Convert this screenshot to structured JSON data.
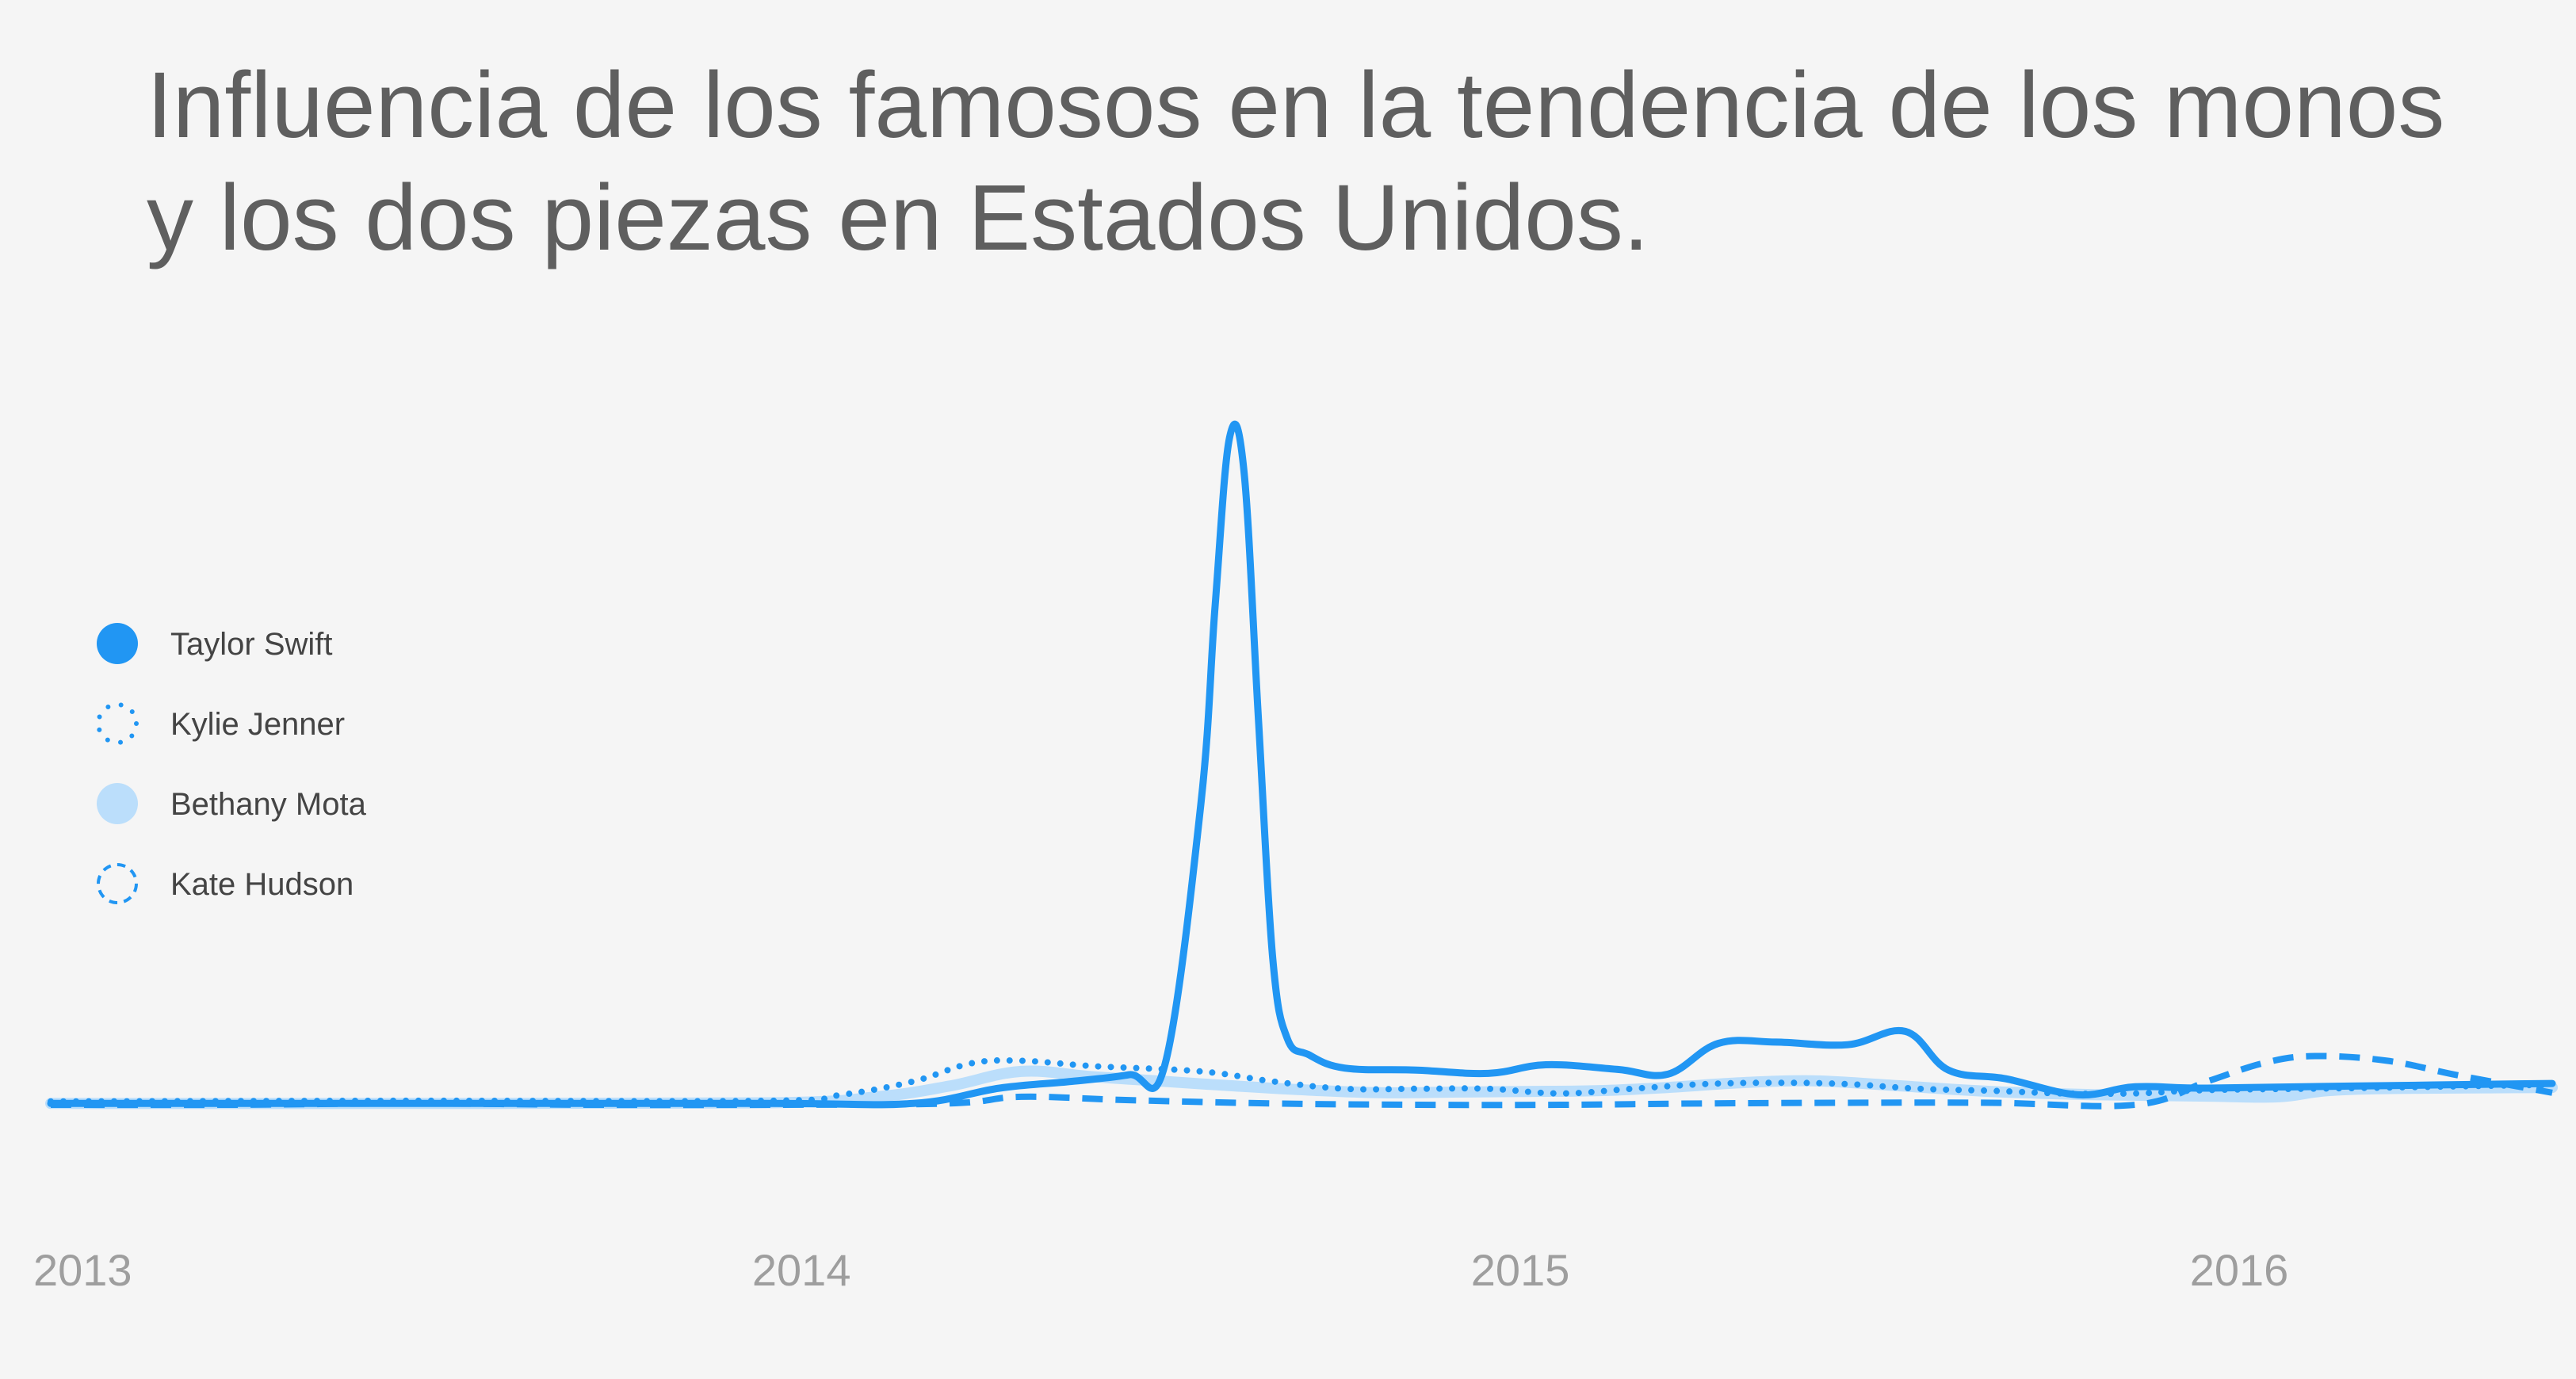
{
  "chart_data": {
    "type": "line",
    "title": "Influencia de los famosos en la tendencia de los monos y los dos piezas en Estados Unidos.",
    "xlabel": "",
    "ylabel": "",
    "x_ticks": [
      "2013",
      "2014",
      "2015",
      "2016"
    ],
    "x_range": [
      2013.0,
      2016.48
    ],
    "ylim": [
      0,
      100
    ],
    "grid": false,
    "legend_position": "left",
    "colors": {
      "primary": "#2196f3",
      "light": "#bbdefb",
      "title": "#5f5f5f",
      "axis_text": "#9e9e9e"
    },
    "series": [
      {
        "name": "Taylor Swift",
        "style": "solid",
        "x": [
          2013.0,
          2013.5,
          2014.0,
          2014.2,
          2014.32,
          2014.42,
          2014.5,
          2014.55,
          2014.6,
          2014.62,
          2014.64,
          2014.66,
          2014.68,
          2014.7,
          2014.72,
          2014.75,
          2014.8,
          2014.9,
          2015.0,
          2015.08,
          2015.18,
          2015.25,
          2015.32,
          2015.4,
          2015.5,
          2015.58,
          2015.64,
          2015.72,
          2015.82,
          2015.9,
          2016.0,
          2016.2,
          2016.48
        ],
        "y": [
          0.2,
          0.2,
          0.2,
          0.2,
          2.5,
          3.5,
          4.5,
          6,
          45,
          75,
          100,
          95,
          58,
          22,
          10,
          7.5,
          5.5,
          5.2,
          4.7,
          6,
          5.3,
          4.6,
          9.2,
          9.4,
          9.0,
          11,
          5.2,
          3.9,
          1.5,
          2.7,
          2.5,
          2.8,
          3.2
        ]
      },
      {
        "name": "Kylie Jenner",
        "style": "dotted",
        "x": [
          2013.0,
          2013.5,
          2014.0,
          2014.1,
          2014.2,
          2014.28,
          2014.35,
          2014.45,
          2014.6,
          2014.7,
          2014.8,
          2014.9,
          2015.0,
          2015.1,
          2015.2,
          2015.3,
          2015.4,
          2015.5,
          2015.6,
          2015.7,
          2015.8,
          2015.9,
          2016.0,
          2016.2,
          2016.48
        ],
        "y": [
          0.5,
          0.6,
          0.6,
          1.5,
          3.5,
          6.2,
          6.6,
          5.8,
          5.0,
          3.5,
          2.4,
          2.4,
          2.4,
          1.7,
          2.4,
          3.1,
          3.3,
          3.1,
          2.4,
          2.1,
          1.7,
          1.7,
          2.2,
          2.5,
          3.0
        ]
      },
      {
        "name": "Bethany Mota",
        "style": "light",
        "x": [
          2013.0,
          2013.5,
          2014.0,
          2014.15,
          2014.25,
          2014.35,
          2014.45,
          2014.55,
          2014.65,
          2014.75,
          2014.85,
          2014.95,
          2015.05,
          2015.15,
          2015.25,
          2015.35,
          2015.45,
          2015.55,
          2015.7,
          2015.85,
          2016.0,
          2016.1,
          2016.2,
          2016.48
        ],
        "y": [
          0.2,
          0.2,
          0.3,
          1.2,
          2.8,
          5.0,
          4.2,
          3.5,
          2.8,
          2.2,
          1.8,
          1.9,
          2.0,
          2.1,
          2.6,
          3.3,
          3.6,
          3.0,
          2.0,
          1.5,
          1.3,
          1.2,
          2.3,
          2.6
        ]
      },
      {
        "name": "Kate Hudson",
        "style": "dashed",
        "x": [
          2013.0,
          2013.25,
          2013.5,
          2013.75,
          2014.0,
          2014.25,
          2014.35,
          2014.5,
          2014.7,
          2014.9,
          2015.1,
          2015.3,
          2015.5,
          2015.7,
          2015.9,
          2016.0,
          2016.08,
          2016.15,
          2016.25,
          2016.35,
          2016.48
        ],
        "y": [
          0.0,
          0.0,
          0.2,
          0.0,
          0.0,
          0.2,
          1.2,
          0.7,
          0.2,
          0.0,
          0.0,
          0.2,
          0.3,
          0.3,
          0.0,
          3.5,
          6.3,
          7.3,
          6.6,
          4.4,
          1.8
        ]
      }
    ]
  }
}
